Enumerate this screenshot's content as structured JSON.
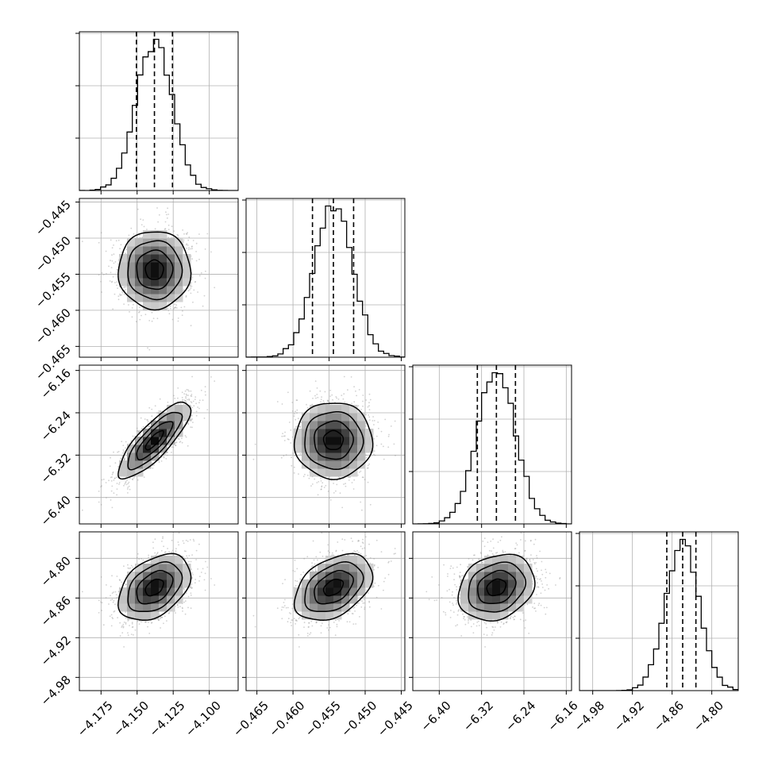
{
  "chart_data": {
    "type": "corner",
    "grid": true,
    "legend": "none",
    "colors": {
      "line": "#000000",
      "grid": "#b0b0b0",
      "scatter": "#9a9a9a",
      "density": "#000000",
      "background": "#ffffff"
    },
    "parameters": [
      {
        "range": [
          -4.19,
          -4.08
        ],
        "ticks": [
          -4.175,
          -4.15,
          -4.125,
          -4.1
        ],
        "tick_labels": [
          "−4.175",
          "−4.150",
          "−4.125",
          "−4.100"
        ],
        "mean": -4.138,
        "sd": 0.0125,
        "quantiles": [
          -4.1505,
          -4.138,
          -4.1255
        ]
      },
      {
        "range": [
          -0.4665,
          -0.4445
        ],
        "ticks": [
          -0.465,
          -0.46,
          -0.455,
          -0.45,
          -0.445
        ],
        "tick_labels": [
          "−0.465",
          "−0.460",
          "−0.455",
          "−0.450",
          "−0.445"
        ],
        "mean": -0.4544,
        "sd": 0.0027,
        "quantiles": [
          -0.4573,
          -0.4544,
          -0.4516
        ]
      },
      {
        "range": [
          -6.45,
          -6.15
        ],
        "ticks": [
          -6.4,
          -6.32,
          -6.24,
          -6.16
        ],
        "tick_labels": [
          "−6.40",
          "−6.32",
          "−6.24",
          "−6.16"
        ],
        "mean": -6.292,
        "sd": 0.036,
        "quantiles": [
          -6.328,
          -6.292,
          -6.256
        ]
      },
      {
        "range": [
          -5.0,
          -4.76
        ],
        "ticks": [
          -4.98,
          -4.92,
          -4.86,
          -4.8
        ],
        "tick_labels": [
          "−4.98",
          "−4.92",
          "−4.86",
          "−4.80"
        ],
        "mean": -4.844,
        "sd": 0.025,
        "quantiles": [
          -4.868,
          -4.844,
          -4.824
        ]
      }
    ],
    "correlations": {
      "1-0": 0.0,
      "2-0": 0.82,
      "2-1": 0.0,
      "3-0": 0.4,
      "3-1": 0.4,
      "3-2": 0.22
    },
    "contour_levels_sigma": [
      0.5,
      1.0,
      1.5,
      2.0
    ],
    "hist_bins": 30,
    "scatter_points": 1500,
    "samples": 20000
  }
}
